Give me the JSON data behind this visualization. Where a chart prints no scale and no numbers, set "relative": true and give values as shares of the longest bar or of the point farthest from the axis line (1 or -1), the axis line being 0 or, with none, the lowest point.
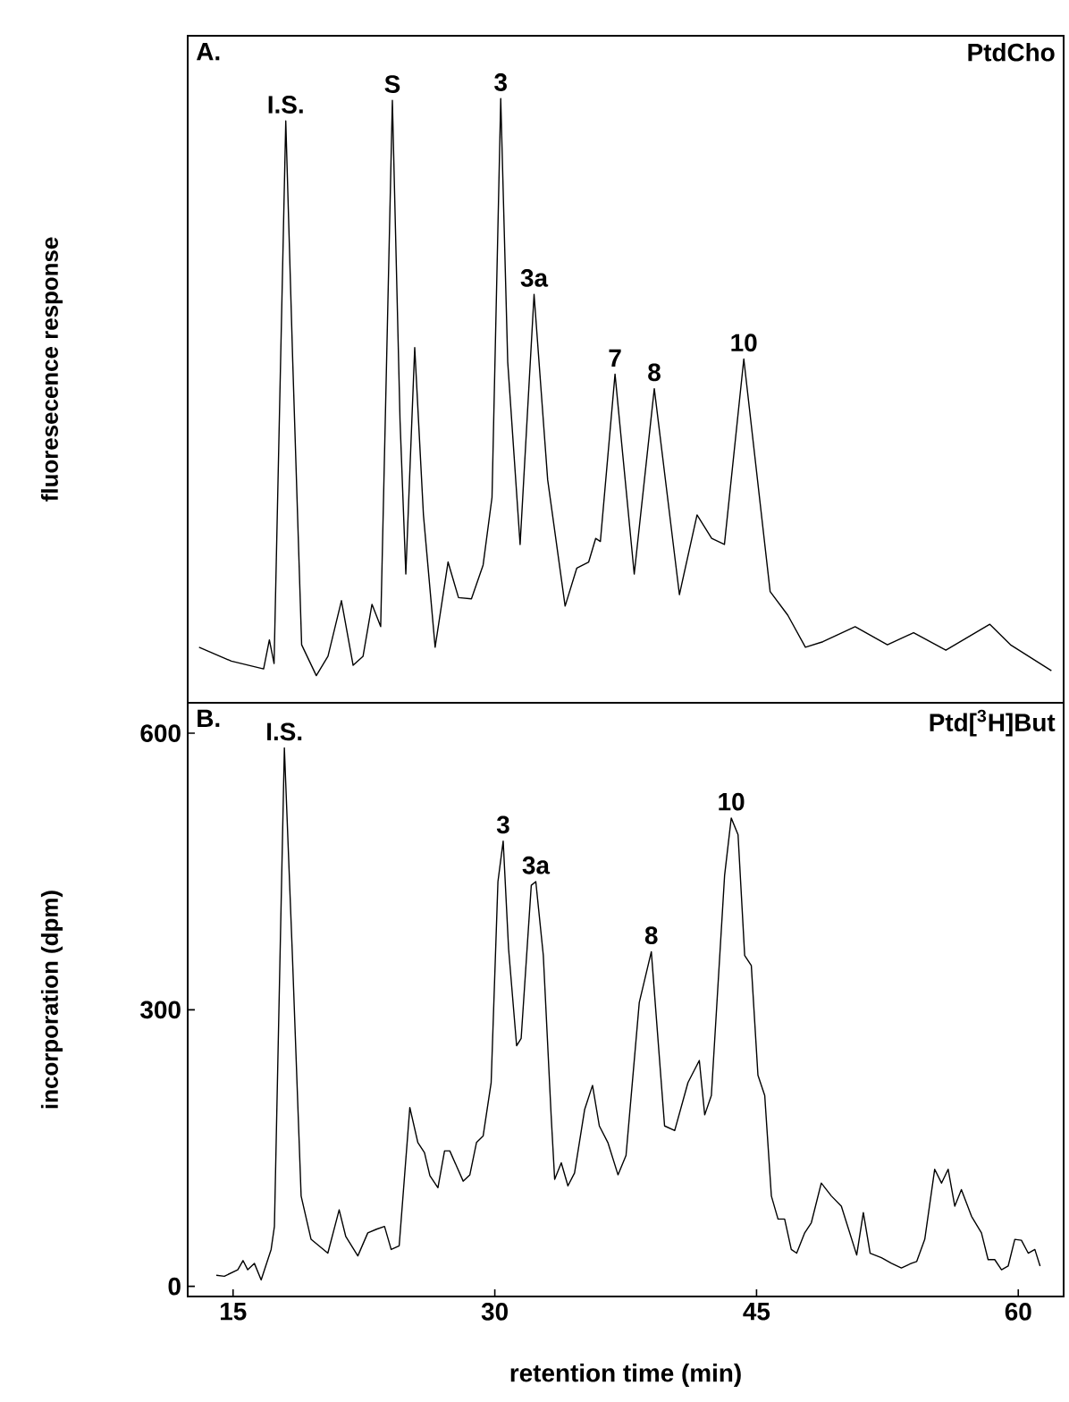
{
  "chart_data": [
    {
      "type": "line",
      "relative": true,
      "xlim": [
        12.4,
        62.6
      ],
      "title": "A.",
      "subtitle": "PtdCho",
      "ylabel": "fluoresecence response",
      "series": [
        {
          "color": "#000000",
          "x": [
            13.05,
            14.9,
            16.75,
            17.08,
            17.35,
            17.65,
            18.02,
            18.42,
            18.93,
            19.77,
            20.44,
            21.21,
            21.88,
            22.45,
            22.96,
            23.46,
            24.13,
            24.57,
            24.9,
            25.41,
            25.91,
            26.58,
            27.32,
            27.92,
            28.66,
            29.33,
            29.84,
            30.34,
            30.74,
            31.45,
            32.25,
            33.03,
            34.03,
            34.7,
            35.38,
            35.78,
            36.05,
            36.89,
            37.99,
            39.14,
            40.58,
            41.59,
            42.43,
            43.16,
            44.27,
            45.78,
            46.79,
            47.8,
            48.8,
            50.65,
            52.5,
            54.0,
            55.85,
            58.37,
            59.55,
            61.9
          ],
          "values": [
            0.092,
            0.069,
            0.056,
            0.104,
            0.065,
            0.466,
            0.963,
            0.564,
            0.096,
            0.045,
            0.077,
            0.169,
            0.062,
            0.077,
            0.163,
            0.126,
            0.997,
            0.466,
            0.213,
            0.588,
            0.311,
            0.092,
            0.233,
            0.174,
            0.172,
            0.228,
            0.34,
            1.0,
            0.564,
            0.262,
            0.676,
            0.369,
            0.16,
            0.223,
            0.233,
            0.272,
            0.267,
            0.544,
            0.213,
            0.52,
            0.179,
            0.311,
            0.272,
            0.262,
            0.569,
            0.184,
            0.145,
            0.092,
            0.101,
            0.126,
            0.096,
            0.116,
            0.087,
            0.13,
            0.096,
            0.053
          ]
        }
      ],
      "annotations": [
        {
          "text": "I.S.",
          "x": 18.02,
          "y": 0.963
        },
        {
          "text": "S",
          "x": 24.13,
          "y": 0.997
        },
        {
          "text": "3",
          "x": 30.34,
          "y": 1.0
        },
        {
          "text": "3a",
          "x": 32.25,
          "y": 0.676
        },
        {
          "text": "7",
          "x": 36.89,
          "y": 0.544
        },
        {
          "text": "8",
          "x": 39.14,
          "y": 0.52
        },
        {
          "text": "10",
          "x": 44.27,
          "y": 0.569
        }
      ]
    },
    {
      "type": "line",
      "xlim": [
        12.4,
        62.6
      ],
      "ylim": [
        -11,
        633
      ],
      "xticks": [
        15,
        30,
        45,
        60
      ],
      "yticks": [
        0,
        300,
        600
      ],
      "title": "B.",
      "subtitle": "Ptd[$^{3}$H]But",
      "xlabel": "retention time (min)",
      "ylabel": "incorporation (dpm)",
      "series": [
        {
          "color": "#000000",
          "x": [
            14.04,
            14.5,
            15.27,
            15.57,
            15.84,
            16.22,
            16.61,
            17.18,
            17.37,
            17.94,
            18.4,
            18.9,
            19.47,
            20.43,
            21.08,
            21.46,
            22.15,
            22.72,
            23.22,
            23.68,
            24.06,
            24.52,
            25.13,
            25.59,
            25.97,
            26.28,
            26.74,
            27.12,
            27.42,
            28.19,
            28.57,
            28.95,
            29.33,
            29.79,
            30.18,
            30.48,
            30.79,
            31.25,
            31.51,
            32.09,
            32.35,
            32.78,
            33.23,
            33.43,
            33.81,
            34.19,
            34.57,
            35.15,
            35.6,
            35.99,
            36.48,
            37.06,
            37.52,
            38.28,
            38.97,
            39.73,
            40.31,
            41.07,
            41.72,
            42.03,
            42.41,
            43.17,
            43.55,
            43.94,
            44.32,
            44.7,
            45.08,
            45.47,
            45.85,
            46.23,
            46.61,
            46.99,
            47.3,
            47.76,
            48.14,
            48.71,
            49.29,
            49.86,
            50.74,
            51.12,
            51.51,
            52.16,
            52.73,
            53.3,
            53.88,
            54.18,
            54.64,
            55.21,
            55.6,
            55.98,
            56.36,
            56.74,
            57.32,
            57.89,
            58.27,
            58.65,
            59.04,
            59.42,
            59.8,
            60.18,
            60.57,
            60.95,
            61.25
          ],
          "values": [
            12,
            11,
            18,
            28,
            18,
            25,
            7,
            40,
            65,
            584,
            359,
            98,
            51,
            36,
            83,
            54,
            33,
            58,
            62,
            65,
            40,
            44,
            194,
            156,
            145,
            120,
            107,
            147,
            147,
            114,
            121,
            156,
            163,
            221,
            439,
            483,
            366,
            261,
            269,
            435,
            439,
            359,
            185,
            116,
            134,
            109,
            123,
            192,
            218,
            174,
            156,
            121,
            142,
            308,
            363,
            174,
            169,
            221,
            245,
            186,
            207,
            446,
            508,
            490,
            359,
            348,
            229,
            207,
            98,
            73,
            73,
            40,
            36,
            58,
            69,
            112,
            98,
            87,
            34,
            80,
            36,
            31,
            25,
            20,
            25,
            27,
            51,
            127,
            112,
            127,
            87,
            105,
            76,
            58,
            29,
            29,
            18,
            22,
            51,
            50,
            36,
            40,
            22
          ]
        }
      ],
      "annotations": [
        {
          "text": "I.S.",
          "x": 17.94,
          "y": 584
        },
        {
          "text": "3",
          "x": 30.48,
          "y": 483
        },
        {
          "text": "3a",
          "x": 32.35,
          "y": 439
        },
        {
          "text": "8",
          "x": 38.97,
          "y": 363
        },
        {
          "text": "10",
          "x": 43.55,
          "y": 508
        }
      ]
    }
  ]
}
